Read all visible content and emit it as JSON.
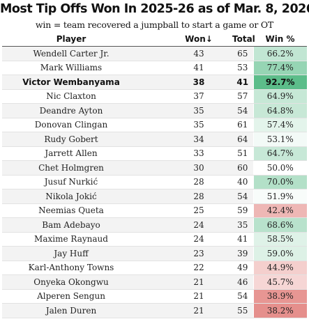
{
  "title": "Most Tip Offs Won In 2025-26 as of Mar. 8, 2026",
  "subtitle": "win = team recovered a jumpball to start a game or OT",
  "columns": {
    "player": "Player",
    "won": "Won↓",
    "total": "Total",
    "win_pct": "Win %"
  },
  "rows": [
    {
      "player": "Wendell Carter Jr.",
      "won": "43",
      "total": "65",
      "win_pct": "66.2%",
      "pct": 66.2
    },
    {
      "player": "Mark Williams",
      "won": "41",
      "total": "53",
      "win_pct": "77.4%",
      "pct": 77.4
    },
    {
      "player": "Victor Wembanyama",
      "won": "38",
      "total": "41",
      "win_pct": "92.7%",
      "pct": 92.7,
      "highlight": true
    },
    {
      "player": "Nic Claxton",
      "won": "37",
      "total": "57",
      "win_pct": "64.9%",
      "pct": 64.9
    },
    {
      "player": "Deandre Ayton",
      "won": "35",
      "total": "54",
      "win_pct": "64.8%",
      "pct": 64.8
    },
    {
      "player": "Donovan Clingan",
      "won": "35",
      "total": "61",
      "win_pct": "57.4%",
      "pct": 57.4
    },
    {
      "player": "Rudy Gobert",
      "won": "34",
      "total": "64",
      "win_pct": "53.1%",
      "pct": 53.1
    },
    {
      "player": "Jarrett Allen",
      "won": "33",
      "total": "51",
      "win_pct": "64.7%",
      "pct": 64.7
    },
    {
      "player": "Chet Holmgren",
      "won": "30",
      "total": "60",
      "win_pct": "50.0%",
      "pct": 50.0
    },
    {
      "player": "Jusuf Nurkić",
      "won": "28",
      "total": "40",
      "win_pct": "70.0%",
      "pct": 70.0
    },
    {
      "player": "Nikola Jokić",
      "won": "28",
      "total": "54",
      "win_pct": "51.9%",
      "pct": 51.9
    },
    {
      "player": "Neemias Queta",
      "won": "25",
      "total": "59",
      "win_pct": "42.4%",
      "pct": 42.4
    },
    {
      "player": "Bam Adebayo",
      "won": "24",
      "total": "35",
      "win_pct": "68.6%",
      "pct": 68.6
    },
    {
      "player": "Maxime Raynaud",
      "won": "24",
      "total": "41",
      "win_pct": "58.5%",
      "pct": 58.5
    },
    {
      "player": "Jay Huff",
      "won": "23",
      "total": "39",
      "win_pct": "59.0%",
      "pct": 59.0
    },
    {
      "player": "Karl-Anthony Towns",
      "won": "22",
      "total": "49",
      "win_pct": "44.9%",
      "pct": 44.9
    },
    {
      "player": "Onyeka Okongwu",
      "won": "21",
      "total": "46",
      "win_pct": "45.7%",
      "pct": 45.7
    },
    {
      "player": "Alperen Sengun",
      "won": "21",
      "total": "54",
      "win_pct": "38.9%",
      "pct": 38.9
    },
    {
      "player": "Jalen Duren",
      "won": "21",
      "total": "55",
      "win_pct": "38.2%",
      "pct": 38.2
    }
  ],
  "colors": {
    "high": "#5cbd8a",
    "mid": "#ffffff",
    "low": "#e58f8c",
    "row_stripe": "#f3f3f3"
  }
}
